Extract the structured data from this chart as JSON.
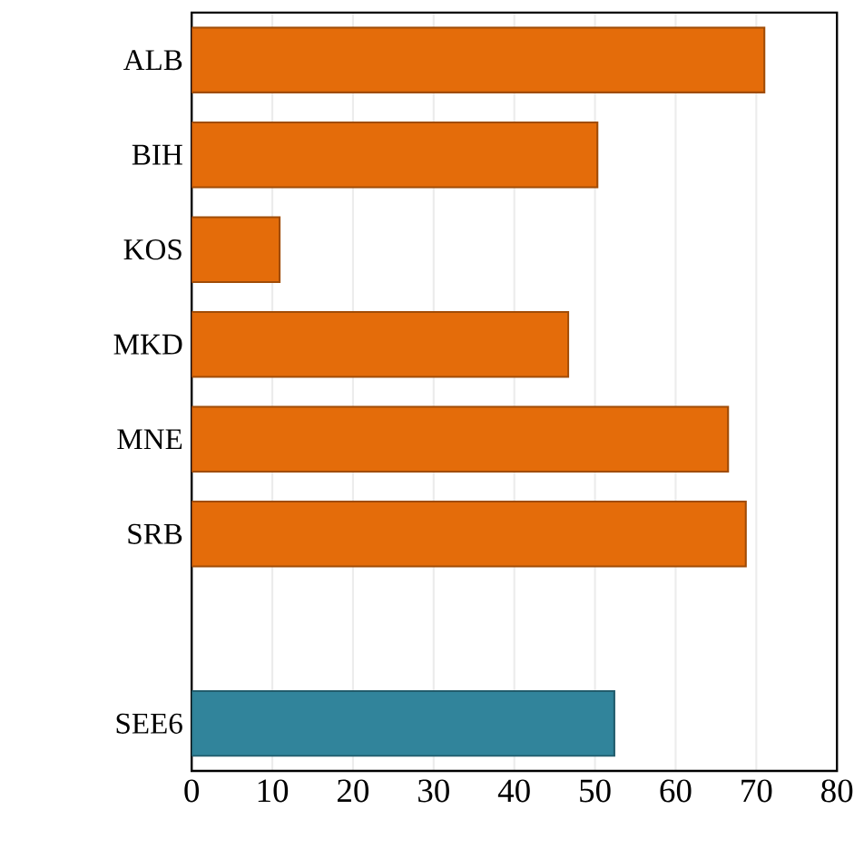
{
  "chart_data": {
    "type": "bar",
    "orientation": "horizontal",
    "categories": [
      "ALB",
      "BIH",
      "KOS",
      "MKD",
      "MNE",
      "SRB",
      null,
      "SEE6"
    ],
    "values": [
      71.0,
      50.3,
      10.9,
      46.7,
      66.5,
      68.7,
      null,
      52.4
    ],
    "colors": [
      "#e46c0a",
      "#e46c0a",
      "#e46c0a",
      "#e46c0a",
      "#e46c0a",
      "#e46c0a",
      "#e46c0a",
      "#31849b"
    ],
    "xlim": [
      0,
      80
    ],
    "xticks": [
      0,
      10,
      20,
      30,
      40,
      50,
      60,
      70,
      80
    ],
    "grid": "x"
  }
}
